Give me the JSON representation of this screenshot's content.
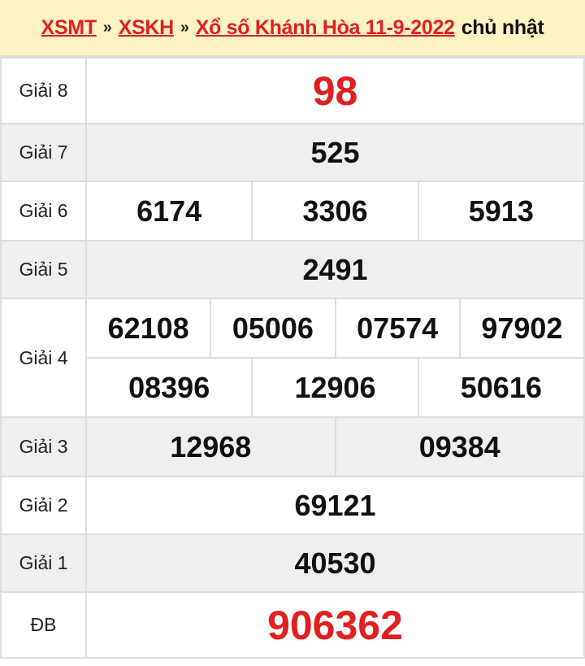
{
  "breadcrumb": {
    "items": [
      "XSMT",
      "XSKH",
      "Xổ số Khánh Hòa 11-9-2022"
    ],
    "separator": "»",
    "day": "chủ nhật"
  },
  "results": {
    "g8": {
      "label": "Giải 8",
      "numbers": [
        "98"
      ]
    },
    "g7": {
      "label": "Giải 7",
      "numbers": [
        "525"
      ]
    },
    "g6": {
      "label": "Giải 6",
      "numbers": [
        "6174",
        "3306",
        "5913"
      ]
    },
    "g5": {
      "label": "Giải 5",
      "numbers": [
        "2491"
      ]
    },
    "g4": {
      "label": "Giải 4",
      "numbers": [
        "62108",
        "05006",
        "07574",
        "97902",
        "08396",
        "12906",
        "50616"
      ]
    },
    "g3": {
      "label": "Giải 3",
      "numbers": [
        "12968",
        "09384"
      ]
    },
    "g2": {
      "label": "Giải 2",
      "numbers": [
        "69121"
      ]
    },
    "g1": {
      "label": "Giải 1",
      "numbers": [
        "40530"
      ]
    },
    "db": {
      "label": "ĐB",
      "numbers": [
        "906362"
      ]
    }
  },
  "colors": {
    "accent": "#e02020",
    "header_bg": "#fdf3c4",
    "alt_row": "#efefef"
  }
}
